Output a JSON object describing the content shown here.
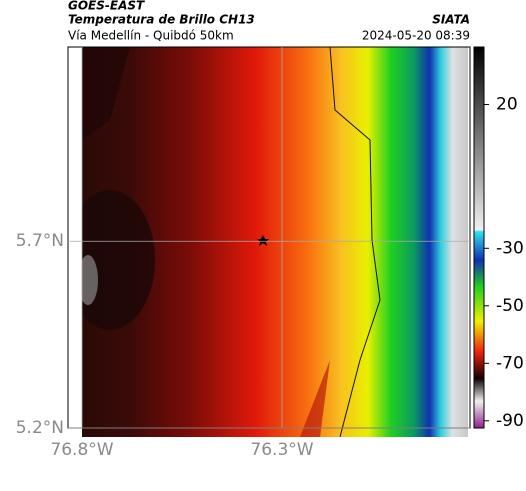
{
  "header": {
    "source": "GOES-EAST",
    "title": "Temperatura de Brillo CH13",
    "organization": "SIATA",
    "subtitle": "Vía Medellín - Quibdó 50km",
    "timestamp": "2024-05-20 08:39"
  },
  "map": {
    "lat_range": [
      5.2,
      6.22
    ],
    "lon_range": [
      -76.835,
      -75.83
    ],
    "lat_ticks": [
      {
        "value": 5.7,
        "label": "5.7°N"
      },
      {
        "value": 5.2,
        "label": "5.2°N"
      }
    ],
    "lon_ticks": [
      {
        "value": -76.8,
        "label": "76.8°W"
      },
      {
        "value": -76.3,
        "label": "76.3°W"
      }
    ]
  },
  "colorbar": {
    "range": [
      -92.5,
      40
    ],
    "ticks": [
      20,
      -30,
      -50,
      -70,
      -90
    ]
  }
}
